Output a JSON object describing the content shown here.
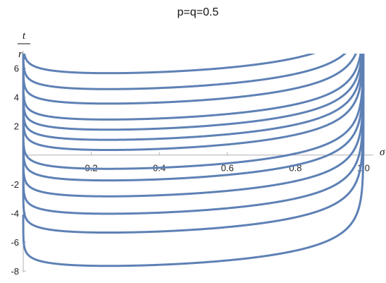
{
  "chart_data": {
    "type": "line",
    "title": "p=q=0.5",
    "xlabel": "σ",
    "ylabel": {
      "numerator": "t",
      "denominator": "r",
      "subscript": "+"
    },
    "xlim": [
      0,
      1.0
    ],
    "ylim": [
      -8,
      7
    ],
    "x_ticks": [
      {
        "value": 0.2,
        "label": "0.2"
      },
      {
        "value": 0.4,
        "label": "0.4"
      },
      {
        "value": 0.6,
        "label": "0.6"
      },
      {
        "value": 0.8,
        "label": "0.8"
      },
      {
        "value": 1.0,
        "label": "1.0"
      }
    ],
    "y_ticks": [
      {
        "value": 6,
        "label": "6"
      },
      {
        "value": 4,
        "label": "4"
      },
      {
        "value": 2,
        "label": "2"
      },
      {
        "value": -2,
        "label": "-2"
      },
      {
        "value": -4,
        "label": "-4"
      },
      {
        "value": -6,
        "label": "-6"
      },
      {
        "value": -8,
        "label": "-8"
      }
    ],
    "curve_minima": [
      6.1,
      5.0,
      4.0,
      2.9,
      2.2,
      1.5,
      0.8,
      -0.5,
      -1.3,
      -2.4,
      -3.6,
      -4.9,
      -7.2
    ],
    "curve_min_x": 0.63,
    "line_color": "#5e81b5",
    "grid": false
  }
}
